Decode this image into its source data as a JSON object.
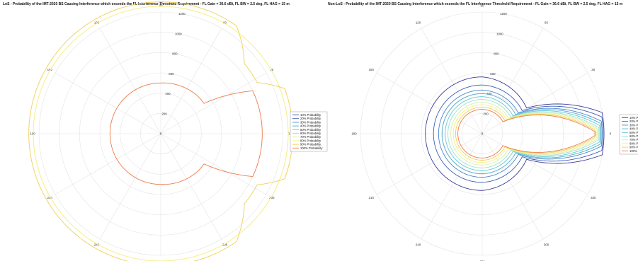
{
  "chart_data": [
    {
      "type": "polar",
      "title": "LoS - Probability of the IMT-2020 BS Causing Interference which exceeds the FL Interference Threshold Requirement - FL Gain = 36.6 dBi, FL BW = 2.5 deg, FL HAG = 15 m",
      "r_max": 1200,
      "r_ticks": [
        "0",
        "200",
        "400",
        "600",
        "800",
        "1000",
        "1200"
      ],
      "theta_ticks": [
        "0",
        "30",
        "60",
        "90",
        "120",
        "150",
        "180",
        "210",
        "240",
        "270",
        "300",
        "330"
      ],
      "legend_position": "right",
      "series": [
        {
          "name": "10% Probability",
          "color": "#3b3b9a",
          "values": []
        },
        {
          "name": "20% Probability",
          "color": "#3b5fb4",
          "values": []
        },
        {
          "name": "30% Probability",
          "color": "#4a86c8",
          "values": []
        },
        {
          "name": "40% Probability",
          "color": "#52acd4",
          "values": []
        },
        {
          "name": "50% Probability",
          "color": "#5fcbd2",
          "values": []
        },
        {
          "name": "60% Probability",
          "color": "#9fe0cf",
          "values": []
        },
        {
          "name": "70% Probability",
          "color": "#d8efb0",
          "values": []
        },
        {
          "name": "80% Probability",
          "color": "#f3f07a",
          "values": []
        },
        {
          "name": "90% Probability",
          "color": "#f1cf55",
          "values": [
            [
              0,
              1300
            ],
            [
              20,
              1300
            ],
            [
              28,
              1075
            ],
            [
              40,
              1075
            ],
            [
              55,
              1300
            ],
            [
              90,
              1300
            ],
            [
              180,
              1300
            ],
            [
              270,
              1300
            ],
            [
              305,
              1300
            ],
            [
              320,
              1075
            ],
            [
              332,
              1075
            ],
            [
              340,
              1300
            ],
            [
              360,
              1300
            ]
          ]
        },
        {
          "name": "100% Probability",
          "color": "#ee7a4a",
          "values": [
            [
              0,
              1000
            ],
            [
              25,
              1000
            ],
            [
              35,
              520
            ],
            [
              45,
              520
            ],
            [
              90,
              500
            ],
            [
              180,
              500
            ],
            [
              270,
              500
            ],
            [
              315,
              520
            ],
            [
              325,
              520
            ],
            [
              335,
              1000
            ],
            [
              360,
              1000
            ]
          ]
        }
      ],
      "outer_boundary": {
        "color": "#f6f08c",
        "radius": 1420
      }
    },
    {
      "type": "polar",
      "title": "Non-LoS - Probability of the IMT-2020 BS Causing Interference which exceeds the FL Interference Threshold Requirement - FL Gain = 36.6 dBi, FL BW = 2.5 deg, FL HAG = 15 m",
      "r_max": 1200,
      "r_ticks": [
        "0",
        "200",
        "400",
        "600",
        "800",
        "1000",
        "1200"
      ],
      "theta_ticks": [
        "0",
        "30",
        "60",
        "90",
        "120",
        "150",
        "180",
        "210",
        "240",
        "270",
        "300",
        "330"
      ],
      "legend_position": "right",
      "series": [
        {
          "name": "10% Probability",
          "color": "#3b3b9a",
          "values": [
            [
              0,
              1200
            ],
            [
              10,
              1200
            ],
            [
              30,
              505
            ],
            [
              90,
              560
            ],
            [
              180,
              560
            ],
            [
              270,
              560
            ],
            [
              330,
              505
            ],
            [
              350,
              1200
            ],
            [
              360,
              1200
            ]
          ]
        },
        {
          "name": "20% Probability",
          "color": "#3b5fb4",
          "values": [
            [
              0,
              1190
            ],
            [
              8,
              1190
            ],
            [
              30,
              455
            ],
            [
              90,
              480
            ],
            [
              180,
              480
            ],
            [
              270,
              480
            ],
            [
              330,
              455
            ],
            [
              352,
              1190
            ],
            [
              360,
              1190
            ]
          ]
        },
        {
          "name": "30% Probability",
          "color": "#4a86c8",
          "values": [
            [
              0,
              1180
            ],
            [
              6,
              1180
            ],
            [
              30,
              410
            ],
            [
              90,
              430
            ],
            [
              180,
              430
            ],
            [
              270,
              430
            ],
            [
              330,
              410
            ],
            [
              354,
              1180
            ],
            [
              360,
              1180
            ]
          ]
        },
        {
          "name": "40% Probability",
          "color": "#52acd4",
          "values": [
            [
              0,
              1170
            ],
            [
              5,
              1170
            ],
            [
              30,
              380
            ],
            [
              90,
              395
            ],
            [
              180,
              395
            ],
            [
              270,
              395
            ],
            [
              330,
              380
            ],
            [
              355,
              1170
            ],
            [
              360,
              1170
            ]
          ]
        },
        {
          "name": "50% Probability",
          "color": "#5fcbd2",
          "values": [
            [
              0,
              1160
            ],
            [
              4,
              1160
            ],
            [
              30,
              350
            ],
            [
              90,
              365
            ],
            [
              180,
              365
            ],
            [
              270,
              365
            ],
            [
              330,
              350
            ],
            [
              356,
              1160
            ],
            [
              360,
              1160
            ]
          ]
        },
        {
          "name": "60% Probability",
          "color": "#9fe0cf",
          "values": [
            [
              0,
              1150
            ],
            [
              3,
              1150
            ],
            [
              30,
              325
            ],
            [
              90,
              338
            ],
            [
              180,
              338
            ],
            [
              270,
              338
            ],
            [
              330,
              325
            ],
            [
              357,
              1150
            ],
            [
              360,
              1150
            ]
          ]
        },
        {
          "name": "70% Probability",
          "color": "#d8efb0",
          "values": [
            [
              0,
              1140
            ],
            [
              2.5,
              1140
            ],
            [
              30,
              300
            ],
            [
              90,
              310
            ],
            [
              180,
              310
            ],
            [
              270,
              310
            ],
            [
              330,
              300
            ],
            [
              357.5,
              1140
            ],
            [
              360,
              1140
            ]
          ]
        },
        {
          "name": "80% Probability",
          "color": "#f3f07a",
          "values": [
            [
              0,
              1130
            ],
            [
              2,
              1130
            ],
            [
              30,
              278
            ],
            [
              90,
              285
            ],
            [
              180,
              285
            ],
            [
              270,
              285
            ],
            [
              330,
              278
            ],
            [
              358,
              1130
            ],
            [
              360,
              1130
            ]
          ]
        },
        {
          "name": "90% Probability",
          "color": "#f1cf55",
          "values": [
            [
              0,
              1120
            ],
            [
              1.5,
              1120
            ],
            [
              30,
              258
            ],
            [
              90,
              262
            ],
            [
              180,
              262
            ],
            [
              270,
              262
            ],
            [
              330,
              258
            ],
            [
              358.5,
              1120
            ],
            [
              360,
              1120
            ]
          ]
        },
        {
          "name": "100% Probability",
          "color": "#ee7a4a",
          "values": [
            [
              0,
              1110
            ],
            [
              1,
              1110
            ],
            [
              30,
              235
            ],
            [
              90,
              240
            ],
            [
              180,
              240
            ],
            [
              270,
              240
            ],
            [
              330,
              235
            ],
            [
              359,
              1110
            ],
            [
              360,
              1110
            ]
          ]
        }
      ]
    }
  ]
}
